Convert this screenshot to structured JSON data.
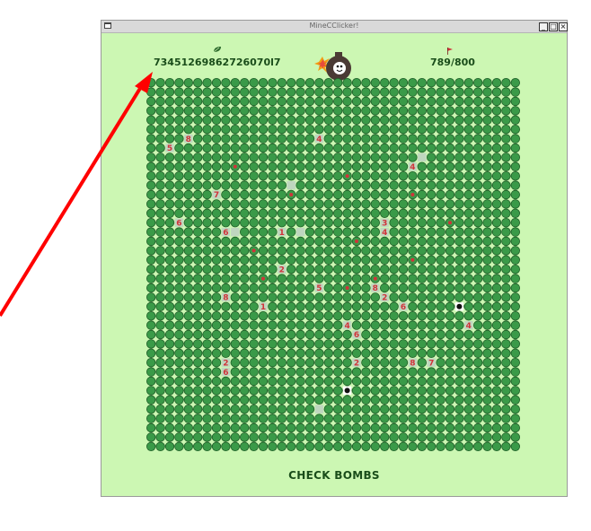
{
  "window": {
    "title": "MineCClicker!",
    "minimize_label": "_",
    "maximize_label": "□",
    "close_label": "×"
  },
  "hud": {
    "score": "73451269862726070l7",
    "flags": "789/800"
  },
  "board": {
    "cols": 40,
    "rows": 40,
    "revealed": [
      [
        4,
        6,
        "8"
      ],
      [
        2,
        7,
        "5"
      ],
      [
        18,
        6,
        "4"
      ],
      [
        28,
        9,
        "4"
      ],
      [
        29,
        8,
        ""
      ],
      [
        15,
        11,
        ""
      ],
      [
        7,
        12,
        "7"
      ],
      [
        3,
        15,
        "6"
      ],
      [
        8,
        16,
        "6"
      ],
      [
        9,
        16,
        ""
      ],
      [
        14,
        16,
        "1"
      ],
      [
        16,
        16,
        ""
      ],
      [
        25,
        15,
        "3"
      ],
      [
        25,
        16,
        "4"
      ],
      [
        14,
        20,
        "2"
      ],
      [
        18,
        22,
        "5"
      ],
      [
        24,
        22,
        "8"
      ],
      [
        8,
        23,
        "8"
      ],
      [
        25,
        23,
        "2"
      ],
      [
        27,
        24,
        "6"
      ],
      [
        12,
        24,
        "1"
      ],
      [
        21,
        26,
        "4"
      ],
      [
        22,
        27,
        "6"
      ],
      [
        34,
        26,
        "4"
      ],
      [
        8,
        30,
        "2"
      ],
      [
        8,
        31,
        "6"
      ],
      [
        22,
        30,
        "2"
      ],
      [
        28,
        30,
        "8"
      ],
      [
        30,
        30,
        "7"
      ],
      [
        18,
        35,
        ""
      ]
    ],
    "flags": [
      [
        9,
        9
      ],
      [
        15,
        12
      ],
      [
        21,
        10
      ],
      [
        28,
        12
      ],
      [
        32,
        15
      ],
      [
        22,
        17
      ],
      [
        11,
        18
      ],
      [
        28,
        19
      ],
      [
        12,
        21
      ],
      [
        24,
        21
      ],
      [
        21,
        22
      ]
    ],
    "bombs": [
      [
        33,
        24
      ],
      [
        21,
        33
      ]
    ]
  },
  "footer": {
    "check_label": "CHECK BOMBS"
  },
  "colors": {
    "background": "#ccf7b3",
    "tile": "#3a9a48",
    "tile_border": "#1f5e28",
    "revealed": "#bfd6bf",
    "number": "#d0343a",
    "accent_arrow": "#ff0000"
  }
}
